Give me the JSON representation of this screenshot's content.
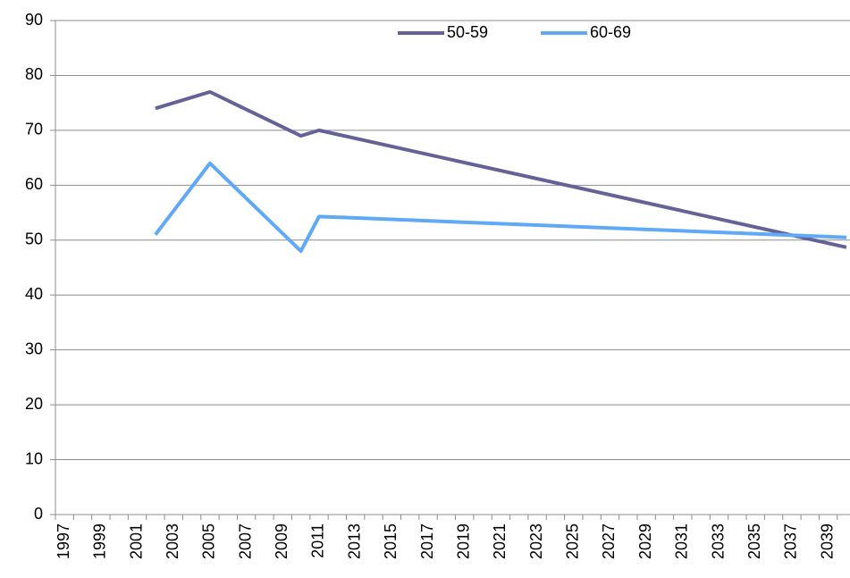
{
  "chart_data": {
    "type": "line",
    "x": [
      2002,
      2005,
      2010,
      2011,
      2040
    ],
    "xlim": [
      1996.5,
      2040.2
    ],
    "xticks": [
      1997,
      1999,
      2001,
      2003,
      2005,
      2007,
      2009,
      2011,
      2013,
      2015,
      2017,
      2019,
      2021,
      2023,
      2025,
      2027,
      2029,
      2031,
      2033,
      2035,
      2037,
      2039
    ],
    "ylim": [
      0,
      90
    ],
    "yticks": [
      0,
      10,
      20,
      30,
      40,
      50,
      60,
      70,
      80,
      90
    ],
    "grid": true,
    "legend": "top",
    "series": [
      {
        "name": "50-59",
        "color": "#646297",
        "values": [
          74,
          77,
          69,
          70,
          48.7
        ]
      },
      {
        "name": "60-69",
        "color": "#5fa9f7",
        "values": [
          51,
          64,
          48,
          54.3,
          50.5
        ]
      }
    ]
  }
}
